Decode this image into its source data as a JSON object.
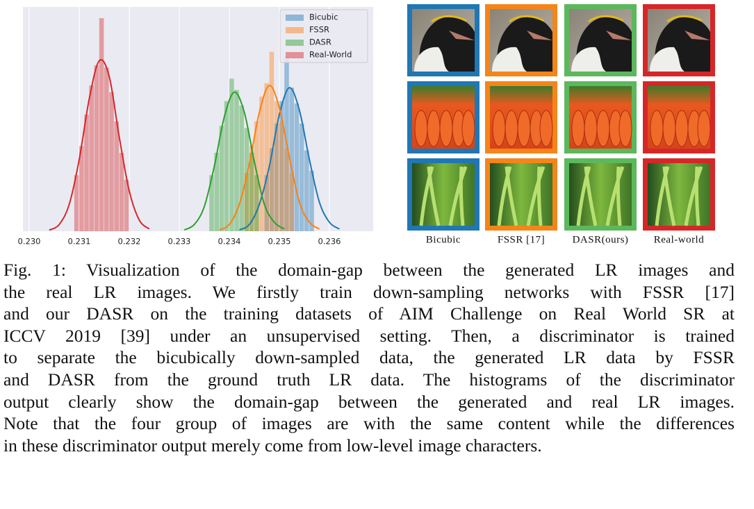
{
  "chart_data": {
    "type": "histogram",
    "xlim": [
      0.229875,
      0.236875
    ],
    "ylim": [
      0,
      100
    ],
    "xticks": [
      {
        "value": 0.23,
        "label": "0.230"
      },
      0.231,
      0.232,
      0.233,
      0.234,
      0.235,
      0.236
    ],
    "grid": true,
    "legend": "upper right",
    "series": [
      {
        "name": "Bicubic",
        "color": "#1f77b4",
        "bins": [
          0.2347,
          0.2348,
          0.2349,
          0.235,
          0.2351,
          0.2352,
          0.2353,
          0.2354,
          0.2355,
          0.2356,
          0.2357
        ],
        "values": [
          25,
          37,
          48,
          58,
          78,
          64,
          57,
          48,
          36,
          27
        ],
        "kde_x": [
          0.2342,
          0.2344,
          0.2346,
          0.2348,
          0.235,
          0.2352,
          0.2354,
          0.2356,
          0.2358,
          0.236,
          0.2362
        ],
        "kde": [
          0.6,
          3,
          12,
          29,
          52,
          64,
          54,
          32,
          13,
          4,
          1
        ]
      },
      {
        "name": "FSSR",
        "color": "#ff7f0e",
        "bins": [
          0.2343,
          0.2344,
          0.2345,
          0.2346,
          0.2347,
          0.2348,
          0.2349,
          0.235,
          0.2351,
          0.2352,
          0.2353
        ],
        "values": [
          26,
          38,
          49,
          60,
          66,
          80,
          58,
          49,
          37,
          26
        ],
        "kde_x": [
          0.2338,
          0.234,
          0.2342,
          0.2344,
          0.2346,
          0.2348,
          0.235,
          0.2352,
          0.2354,
          0.2356,
          0.2358
        ],
        "kde": [
          0.6,
          3,
          12,
          30,
          53,
          65,
          55,
          33,
          13,
          4,
          1
        ]
      },
      {
        "name": "DASR",
        "color": "#2ca02c",
        "bins": [
          0.2336,
          0.2337,
          0.2338,
          0.2339,
          0.234,
          0.2341,
          0.2342,
          0.2343,
          0.2344,
          0.2345,
          0.2346
        ],
        "values": [
          25,
          35,
          47,
          58,
          68,
          63,
          56,
          46,
          35,
          25
        ],
        "kde_x": [
          0.2331,
          0.2333,
          0.2335,
          0.2337,
          0.2339,
          0.2341,
          0.2343,
          0.2345,
          0.2347,
          0.2349,
          0.2351
        ],
        "kde": [
          0.6,
          3,
          11,
          29,
          51,
          62,
          53,
          31,
          12,
          4,
          1
        ]
      },
      {
        "name": "Real-World",
        "color": "#d62728",
        "bins": [
          0.2309,
          0.231,
          0.2311,
          0.2312,
          0.2313,
          0.2314,
          0.2315,
          0.2316,
          0.2317,
          0.2318,
          0.2319,
          0.232
        ],
        "values": [
          25,
          38,
          52,
          65,
          74,
          95,
          73,
          62,
          49,
          35,
          23
        ],
        "kde_x": [
          0.2304,
          0.2306,
          0.2308,
          0.231,
          0.2312,
          0.2314,
          0.2316,
          0.2318,
          0.232,
          0.2322,
          0.2324
        ],
        "kde": [
          0.5,
          3,
          12,
          32,
          59,
          76,
          69,
          42,
          18,
          5,
          1
        ]
      }
    ]
  },
  "image_grid": {
    "columns": [
      "Bicubic",
      "FSSR [17]",
      "DASR(ours)",
      "Real-world"
    ]
  },
  "caption": {
    "lines": [
      "Fig. 1: Visualization of the domain-gap between the generated LR images and",
      "the real LR images. We firstly train down-sampling networks with FSSR [17]",
      "and our DASR on the training datasets of AIM Challenge on Real World SR at",
      "ICCV 2019 [39] under an unsupervised setting. Then, a discriminator is trained",
      "to separate the bicubically down-sampled data, the generated LR data by FSSR",
      "and DASR from the ground truth LR data. The histograms of the discriminator",
      "output clearly show the domain-gap between the generated and real LR images.",
      "Note that the four group of images are with the same content while the differences",
      "in these discriminator output merely come from low-level image characters."
    ]
  }
}
